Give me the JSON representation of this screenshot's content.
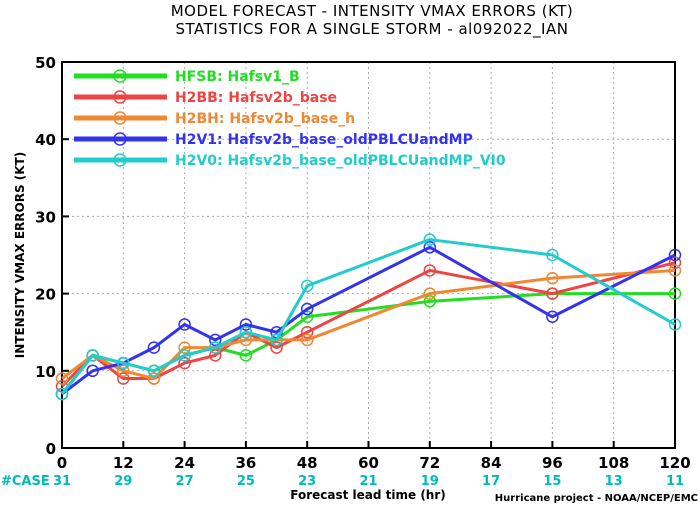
{
  "chart_data": {
    "type": "line",
    "title_line1": "MODEL FORECAST - INTENSITY VMAX ERRORS (KT)",
    "title_line2": "STATISTICS FOR A SINGLE STORM - al092022_IAN",
    "xlabel": "Forecast lead time (hr)",
    "ylabel": "INTENSITY VMAX ERRORS (KT)",
    "xlim": [
      0,
      120
    ],
    "ylim": [
      0,
      50
    ],
    "xticks": [
      0,
      12,
      24,
      36,
      48,
      60,
      72,
      84,
      96,
      108,
      120
    ],
    "yticks": [
      0,
      10,
      20,
      30,
      40,
      50
    ],
    "grid": true,
    "legend_position": "top-left",
    "case_label": "#CASE",
    "case_color": "#00BBBB",
    "case_counts": [
      31,
      29,
      27,
      25,
      23,
      21,
      19,
      17,
      15,
      13,
      11
    ],
    "credit": "Hurricane project - NOAA/NCEP/EMC",
    "series": [
      {
        "label": "HFSB: Hafsv1_B",
        "color": "#22DD22",
        "x": [
          0,
          6,
          12,
          18,
          24,
          30,
          36,
          42,
          48,
          72,
          96,
          120
        ],
        "y": [
          7,
          12,
          11,
          10,
          12,
          13,
          12,
          14,
          17,
          19,
          20,
          20
        ]
      },
      {
        "label": "H2BB: Hafsv2b_base",
        "color": "#EE4444",
        "x": [
          0,
          6,
          12,
          18,
          24,
          30,
          36,
          42,
          48,
          72,
          96,
          120
        ],
        "y": [
          8,
          12,
          9,
          9,
          11,
          12,
          15,
          13,
          15,
          23,
          20,
          24
        ]
      },
      {
        "label": "H2BH: Hafsv2b_base_h",
        "color": "#EE8833",
        "x": [
          0,
          6,
          12,
          18,
          24,
          30,
          36,
          42,
          48,
          72,
          96,
          120
        ],
        "y": [
          9,
          12,
          10,
          9,
          13,
          13,
          14,
          14,
          14,
          20,
          22,
          23
        ]
      },
      {
        "label": "H2V1: Hafsv2b_base_oldPBLCUandMP",
        "color": "#3333EE",
        "x": [
          0,
          6,
          12,
          18,
          24,
          30,
          36,
          42,
          48,
          72,
          96,
          120
        ],
        "y": [
          7,
          10,
          11,
          13,
          16,
          14,
          16,
          15,
          18,
          26,
          17,
          25
        ]
      },
      {
        "label": "H2V0: Hafsv2b_base_oldPBLCUandMP_VI0",
        "color": "#22CCCC",
        "x": [
          0,
          6,
          12,
          18,
          24,
          30,
          36,
          42,
          48,
          72,
          96,
          120
        ],
        "y": [
          7,
          12,
          11,
          10,
          12,
          13,
          15,
          14,
          21,
          27,
          25,
          16
        ]
      }
    ]
  }
}
